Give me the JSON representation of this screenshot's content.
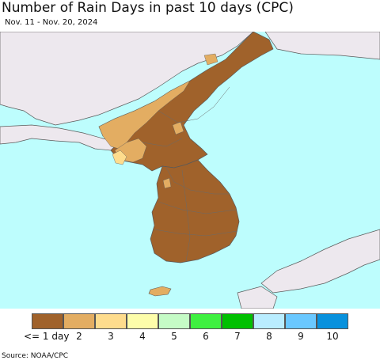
{
  "title": "Number of Rain Days in past 10 days (CPC)",
  "subtitle": "Nov. 11 - Nov. 20, 2024",
  "source": "Source: NOAA/CPC",
  "colors": {
    "ocean": "#bdfdfd",
    "other_land": "#ede8ee",
    "border": "#5a5a5a"
  },
  "legend": [
    {
      "label": "<= 1 day",
      "color": "#a0622b"
    },
    {
      "label": "2",
      "color": "#e3ad62"
    },
    {
      "label": "3",
      "color": "#fedc8d"
    },
    {
      "label": "4",
      "color": "#fdfdaa"
    },
    {
      "label": "5",
      "color": "#c5fbc6"
    },
    {
      "label": "6",
      "color": "#3ff040"
    },
    {
      "label": "7",
      "color": "#00c000"
    },
    {
      "label": "8",
      "color": "#b9edff"
    },
    {
      "label": "9",
      "color": "#6ac8ff"
    },
    {
      "label": "10",
      "color": "#0891dd"
    }
  ]
}
